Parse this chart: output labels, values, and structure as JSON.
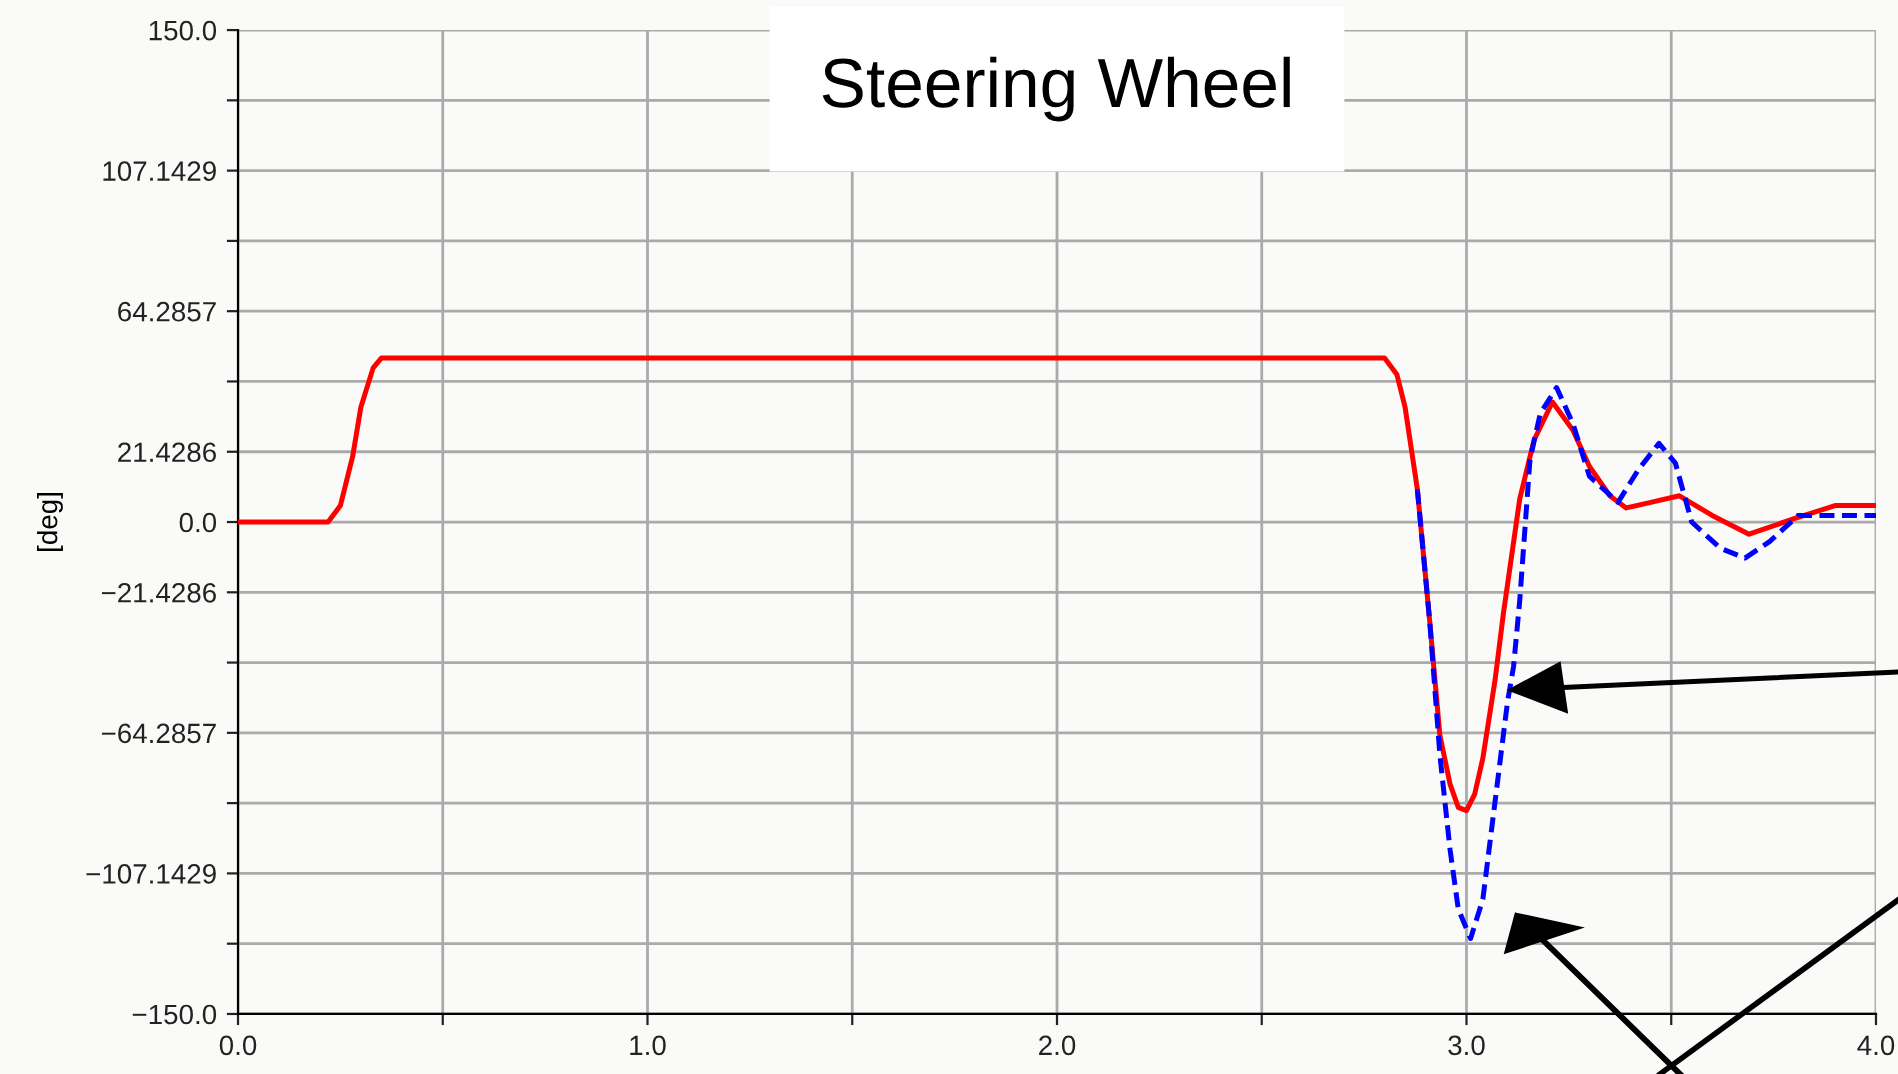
{
  "chart_data": {
    "type": "line",
    "title": "Steering Wheel",
    "ylabel": "[deg]",
    "xlim": [
      0,
      4
    ],
    "ylim": [
      -150,
      150
    ],
    "xticks": [
      {
        "value": 0,
        "label": "0.0"
      },
      {
        "value": 0.5,
        "label": null
      },
      {
        "value": 1,
        "label": "1.0"
      },
      {
        "value": 1.5,
        "label": null
      },
      {
        "value": 2,
        "label": "2.0"
      },
      {
        "value": 2.5,
        "label": null
      },
      {
        "value": 3,
        "label": "3.0"
      },
      {
        "value": 3.5,
        "label": null
      },
      {
        "value": 4,
        "label": "4.0"
      }
    ],
    "yticks": [
      {
        "value": -150,
        "label": "−150.0"
      },
      {
        "value": -128.5714,
        "label": null
      },
      {
        "value": -107.1429,
        "label": "−107.1429"
      },
      {
        "value": -85.7143,
        "label": null
      },
      {
        "value": -64.2857,
        "label": "−64.2857"
      },
      {
        "value": -42.8571,
        "label": null
      },
      {
        "value": -21.4286,
        "label": "−21.4286"
      },
      {
        "value": 0,
        "label": "0.0"
      },
      {
        "value": 21.4286,
        "label": "21.4286"
      },
      {
        "value": 42.8571,
        "label": null
      },
      {
        "value": 64.2857,
        "label": "64.2857"
      },
      {
        "value": 85.7143,
        "label": null
      },
      {
        "value": 107.1429,
        "label": "107.1429"
      },
      {
        "value": 128.5714,
        "label": null
      },
      {
        "value": 150,
        "label": "150.0"
      }
    ],
    "grid": true,
    "marker": "none",
    "series": [
      {
        "color": "#0000ff",
        "line_style": "dashed",
        "x": [
          2.88,
          2.91,
          2.935,
          2.96,
          2.98,
          3.01,
          3.04,
          3.07,
          3.1,
          3.115,
          3.13,
          3.155,
          3.18,
          3.22,
          3.26,
          3.3,
          3.37,
          3.42,
          3.47,
          3.51,
          3.55,
          3.62,
          3.68,
          3.74,
          3.81,
          3.9,
          4.0
        ],
        "values": [
          10,
          -30,
          -71,
          -100,
          -118,
          -127,
          -115,
          -85,
          -55,
          -44,
          -24,
          19,
          33,
          41,
          30,
          14,
          6,
          16,
          24,
          18,
          0,
          -8,
          -11,
          -6,
          2,
          2,
          2
        ]
      },
      {
        "color": "#ff0000",
        "line_style": "solid",
        "x": [
          0,
          0.22,
          0.25,
          0.28,
          0.3,
          0.33,
          0.35,
          2.8,
          2.83,
          2.85,
          2.88,
          2.91,
          2.935,
          2.96,
          2.98,
          3.0,
          3.02,
          3.04,
          3.07,
          3.09,
          3.13,
          3.165,
          3.21,
          3.26,
          3.3,
          3.35,
          3.39,
          3.45,
          3.52,
          3.6,
          3.69,
          3.8,
          3.9,
          4.0
        ],
        "values": [
          0,
          0,
          5,
          20,
          35,
          47,
          50,
          50,
          45,
          35,
          10,
          -30,
          -65,
          -80,
          -87,
          -88,
          -83,
          -72,
          -48,
          -28,
          7,
          25,
          36.6,
          28,
          17,
          8,
          4.3,
          6,
          8,
          2,
          -3.7,
          1,
          5,
          5
        ]
      }
    ]
  }
}
